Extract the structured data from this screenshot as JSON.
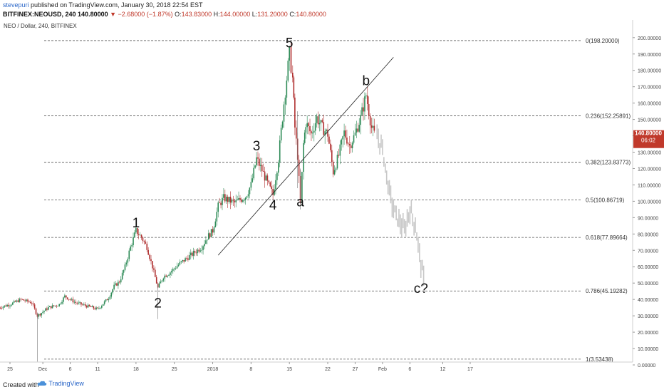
{
  "header": {
    "author": "stevepuri",
    "published_text": "published on TradingView.com, January 30, 2018 22:54 EST",
    "symbol": "BITFINEX:NEOUSD, 240",
    "last": "140.80000",
    "change": "▼ −2.68000 (−1.87%)",
    "ohlc": {
      "o_label": "O:",
      "o": "143.83000",
      "h_label": "H:",
      "h": "144.00000",
      "l_label": "L:",
      "l": "131.20000",
      "c_label": "C:",
      "c": "140.80000"
    }
  },
  "footer": {
    "created_with": "Created with",
    "brand": "TradingView"
  },
  "colors": {
    "up": "#2e8b57",
    "down": "#b03030",
    "projection": "#c8c8c8",
    "price_tag": "#c0392b"
  },
  "chart_data": {
    "type": "candlestick",
    "title": "NEO / Dollar, 240, BITFINEX",
    "ylim": [
      0,
      205
    ],
    "y_ticks": [
      "0.00000",
      "10.00000",
      "20.00000",
      "30.00000",
      "40.00000",
      "50.00000",
      "60.00000",
      "70.00000",
      "80.00000",
      "90.00000",
      "100.00000",
      "110.00000",
      "120.00000",
      "130.00000",
      "140.00000",
      "150.00000",
      "160.00000",
      "170.00000",
      "180.00000",
      "190.00000",
      "200.00000"
    ],
    "x_ticks": [
      "25",
      "Dec",
      "6",
      "11",
      "18",
      "25",
      "2018",
      "8",
      "15",
      "22",
      "27",
      "Feb",
      "6",
      "12",
      "17"
    ],
    "current_price": "140.80000",
    "current_time": "06:02",
    "fib_levels": [
      {
        "ratio": "0",
        "value": 198.2,
        "label": "0(198.20000)"
      },
      {
        "ratio": "0.236",
        "value": 152.25891,
        "label": "0.236(152.25891)"
      },
      {
        "ratio": "0.382",
        "value": 123.83773,
        "label": "0.382(123.83773)"
      },
      {
        "ratio": "0.5",
        "value": 100.86719,
        "label": "0.5(100.86719)"
      },
      {
        "ratio": "0.618",
        "value": 77.89664,
        "label": "0.618(77.89664)"
      },
      {
        "ratio": "0.786",
        "value": 45.19282,
        "label": "0.786(45.19282)"
      },
      {
        "ratio": "1",
        "value": 3.53438,
        "label": "1(3.53438)"
      }
    ],
    "wave_labels": [
      {
        "text": "1",
        "date": "Dec 18",
        "price": 84
      },
      {
        "text": "2",
        "date": "Dec 22",
        "price": 35
      },
      {
        "text": "3",
        "date": "Jan 9",
        "price": 131
      },
      {
        "text": "4",
        "date": "Jan 12",
        "price": 95
      },
      {
        "text": "5",
        "date": "Jan 15",
        "price": 194
      },
      {
        "text": "a",
        "date": "Jan 17",
        "price": 97
      },
      {
        "text": "b",
        "date": "Jan 29",
        "price": 171
      },
      {
        "text": "c?",
        "date": "Feb 8",
        "price": 44
      }
    ],
    "trendline": {
      "start": {
        "date": "Jan 2",
        "price": 67
      },
      "end": {
        "date": "Feb 3",
        "price": 188
      }
    },
    "price_path": [
      [
        "Nov 23",
        35
      ],
      [
        "Nov 25",
        37
      ],
      [
        "Nov 27",
        40
      ],
      [
        "Nov 29",
        38
      ],
      [
        "Nov 30",
        30
      ],
      [
        "Dec 2",
        35
      ],
      [
        "Dec 4",
        37
      ],
      [
        "Dec 5",
        42
      ],
      [
        "Dec 7",
        38
      ],
      [
        "Dec 9",
        36
      ],
      [
        "Dec 11",
        34
      ],
      [
        "Dec 13",
        41
      ],
      [
        "Dec 14",
        48
      ],
      [
        "Dec 15",
        51
      ],
      [
        "Dec 16",
        60
      ],
      [
        "Dec 17",
        72
      ],
      [
        "Dec 18",
        82
      ],
      [
        "Dec 19",
        78
      ],
      [
        "Dec 20",
        72
      ],
      [
        "Dec 21",
        60
      ],
      [
        "Dec 22",
        47
      ],
      [
        "Dec 23",
        54
      ],
      [
        "Dec 24",
        56
      ],
      [
        "Dec 26",
        62
      ],
      [
        "Dec 28",
        67
      ],
      [
        "Dec 30",
        72
      ],
      [
        "Dec 31",
        78
      ],
      [
        "Jan 1",
        82
      ],
      [
        "Jan 2",
        97
      ],
      [
        "Jan 3",
        102
      ],
      [
        "Jan 5",
        99
      ],
      [
        "Jan 7",
        103
      ],
      [
        "Jan 8",
        110
      ],
      [
        "Jan 9",
        126
      ],
      [
        "Jan 10",
        119
      ],
      [
        "Jan 11",
        111
      ],
      [
        "Jan 12",
        104
      ],
      [
        "Jan 13",
        126
      ],
      [
        "Jan 14",
        160
      ],
      [
        "Jan 15",
        190
      ],
      [
        "Jan 15.6",
        175
      ],
      [
        "Jan 16",
        145
      ],
      [
        "Jan 16.5",
        128
      ],
      [
        "Jan 17",
        98
      ],
      [
        "Jan 17.6",
        135
      ],
      [
        "Jan 18",
        148
      ],
      [
        "Jan 19",
        141
      ],
      [
        "Jan 20",
        151
      ],
      [
        "Jan 21",
        145
      ],
      [
        "Jan 22",
        141
      ],
      [
        "Jan 23",
        118
      ],
      [
        "Jan 24",
        128
      ],
      [
        "Jan 25",
        142
      ],
      [
        "Jan 26",
        134
      ],
      [
        "Jan 27",
        141
      ],
      [
        "Jan 28",
        151
      ],
      [
        "Jan 29",
        165
      ],
      [
        "Jan 30",
        145
      ],
      [
        "Jan 30.5",
        141
      ]
    ],
    "projection_path": [
      [
        "Jan 31",
        140
      ],
      [
        "Feb 1",
        132
      ],
      [
        "Feb 2",
        110
      ],
      [
        "Feb 3",
        95
      ],
      [
        "Feb 4",
        88
      ],
      [
        "Feb 5",
        82
      ],
      [
        "Feb 6",
        95
      ],
      [
        "Feb 7",
        85
      ],
      [
        "Feb 8",
        62
      ],
      [
        "Feb 8.5",
        52
      ]
    ]
  }
}
